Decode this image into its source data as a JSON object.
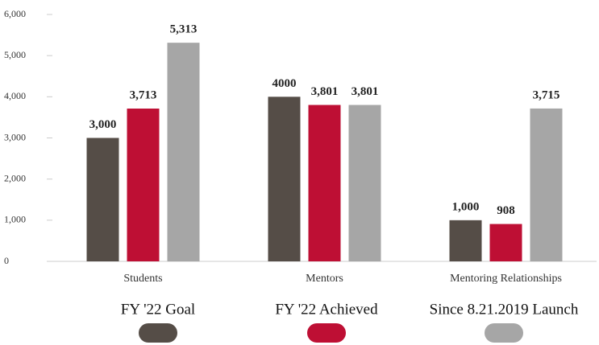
{
  "chart_data": {
    "type": "bar",
    "categories": [
      "Students",
      "Mentors",
      "Mentoring Relationships"
    ],
    "series": [
      {
        "name": "FY '22 Goal",
        "color": "#554d47",
        "values": [
          3000,
          4000,
          1000
        ],
        "value_labels": [
          "3,000",
          "4000",
          "1,000"
        ]
      },
      {
        "name": "FY '22 Achieved",
        "color": "#be0f34",
        "values": [
          3713,
          3801,
          908
        ],
        "value_labels": [
          "3,713",
          "3,801",
          "908"
        ]
      },
      {
        "name": "Since 8.21.2019 Launch",
        "color": "#a6a6a6",
        "values": [
          5313,
          3801,
          3715
        ],
        "value_labels": [
          "5,313",
          "3,801",
          "3,715"
        ]
      }
    ],
    "ylim": [
      0,
      6000
    ],
    "yticks": [
      0,
      {
        "value": 1000,
        "label": "1,000"
      },
      {
        "value": 2000,
        "label": "2,000"
      },
      {
        "value": 3000,
        "label": "3,000"
      },
      {
        "value": 4000,
        "label": "4,000"
      },
      {
        "value": 5000,
        "label": "5,000"
      },
      {
        "value": 6000,
        "label": "6,000"
      }
    ],
    "grid": false,
    "legend": "bottom"
  }
}
